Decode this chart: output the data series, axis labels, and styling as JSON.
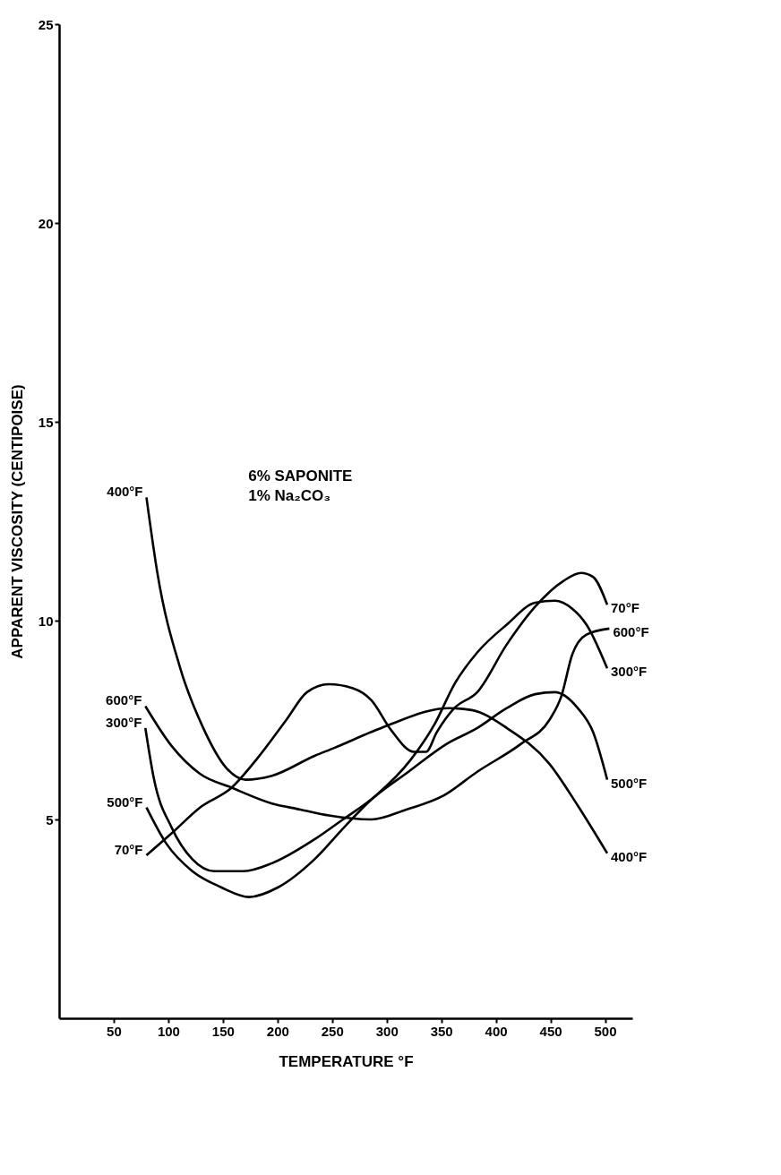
{
  "chart_data": {
    "type": "line",
    "xlabel": "TEMPERATURE °F",
    "ylabel": "APPARENT VISCOSITY (CENTIPOISE)",
    "xlim": [
      0,
      525
    ],
    "ylim": [
      0,
      25
    ],
    "xticks": [
      50,
      100,
      150,
      200,
      250,
      300,
      350,
      400,
      450,
      500
    ],
    "yticks": [
      5,
      10,
      15,
      20,
      25
    ],
    "grid": false,
    "marker": "none",
    "line_style": "solid",
    "legend": false,
    "annotations": [
      "6% SAPONITE",
      "1% Na₂CO₃"
    ],
    "series": [
      {
        "name": "400°F",
        "color": "#000000",
        "x": [
          80,
          90,
          111,
          132,
          153,
          171,
          195,
          234,
          252,
          286,
          304,
          357,
          378,
          410,
          449,
          475,
          502
        ],
        "values": [
          13.1,
          11.2,
          8.8,
          7.3,
          6.3,
          6.0,
          6.1,
          6.6,
          6.8,
          7.2,
          7.4,
          7.8,
          7.75,
          7.3,
          6.4,
          5.35,
          4.15
        ]
      },
      {
        "name": "70°F",
        "color": "#000000",
        "x": [
          80,
          103,
          129,
          158,
          182,
          208,
          227,
          247,
          269,
          286,
          304,
          325,
          336,
          346,
          362,
          383,
          410,
          436,
          462,
          478,
          489,
          502
        ],
        "values": [
          4.1,
          4.65,
          5.3,
          5.8,
          6.55,
          7.5,
          8.2,
          8.4,
          8.3,
          8.0,
          7.25,
          6.7,
          6.7,
          7.2,
          7.8,
          8.2,
          9.4,
          10.35,
          11.0,
          11.2,
          11.1,
          10.4
        ]
      },
      {
        "name": "600°F",
        "color": "#000000",
        "x": [
          79,
          103,
          129,
          158,
          195,
          221,
          247,
          286,
          318,
          352,
          383,
          423,
          449,
          460,
          470,
          483,
          504
        ],
        "values": [
          7.85,
          6.85,
          6.15,
          5.8,
          5.4,
          5.25,
          5.1,
          5.0,
          5.25,
          5.6,
          6.2,
          6.9,
          7.5,
          8.1,
          9.15,
          9.65,
          9.8
        ]
      },
      {
        "name": "300°F",
        "color": "#000000",
        "x": [
          79,
          87,
          103,
          122,
          142,
          169,
          195,
          234,
          260,
          290,
          322,
          344,
          362,
          383,
          410,
          436,
          454,
          470,
          483,
          502
        ],
        "values": [
          7.3,
          6.0,
          4.8,
          4.0,
          3.7,
          3.7,
          3.9,
          4.5,
          5.0,
          5.6,
          6.5,
          7.4,
          8.4,
          9.2,
          9.9,
          10.45,
          10.5,
          10.3,
          9.9,
          8.8
        ]
      },
      {
        "name": "500°F",
        "color": "#000000",
        "x": [
          80,
          98,
          122,
          148,
          174,
          201,
          234,
          261,
          286,
          320,
          355,
          383,
          410,
          436,
          454,
          475,
          489,
          502
        ],
        "values": [
          5.3,
          4.4,
          3.7,
          3.3,
          3.05,
          3.3,
          4.0,
          4.8,
          5.5,
          6.2,
          6.9,
          7.3,
          7.8,
          8.15,
          8.2,
          7.8,
          7.2,
          6.0
        ]
      }
    ]
  }
}
